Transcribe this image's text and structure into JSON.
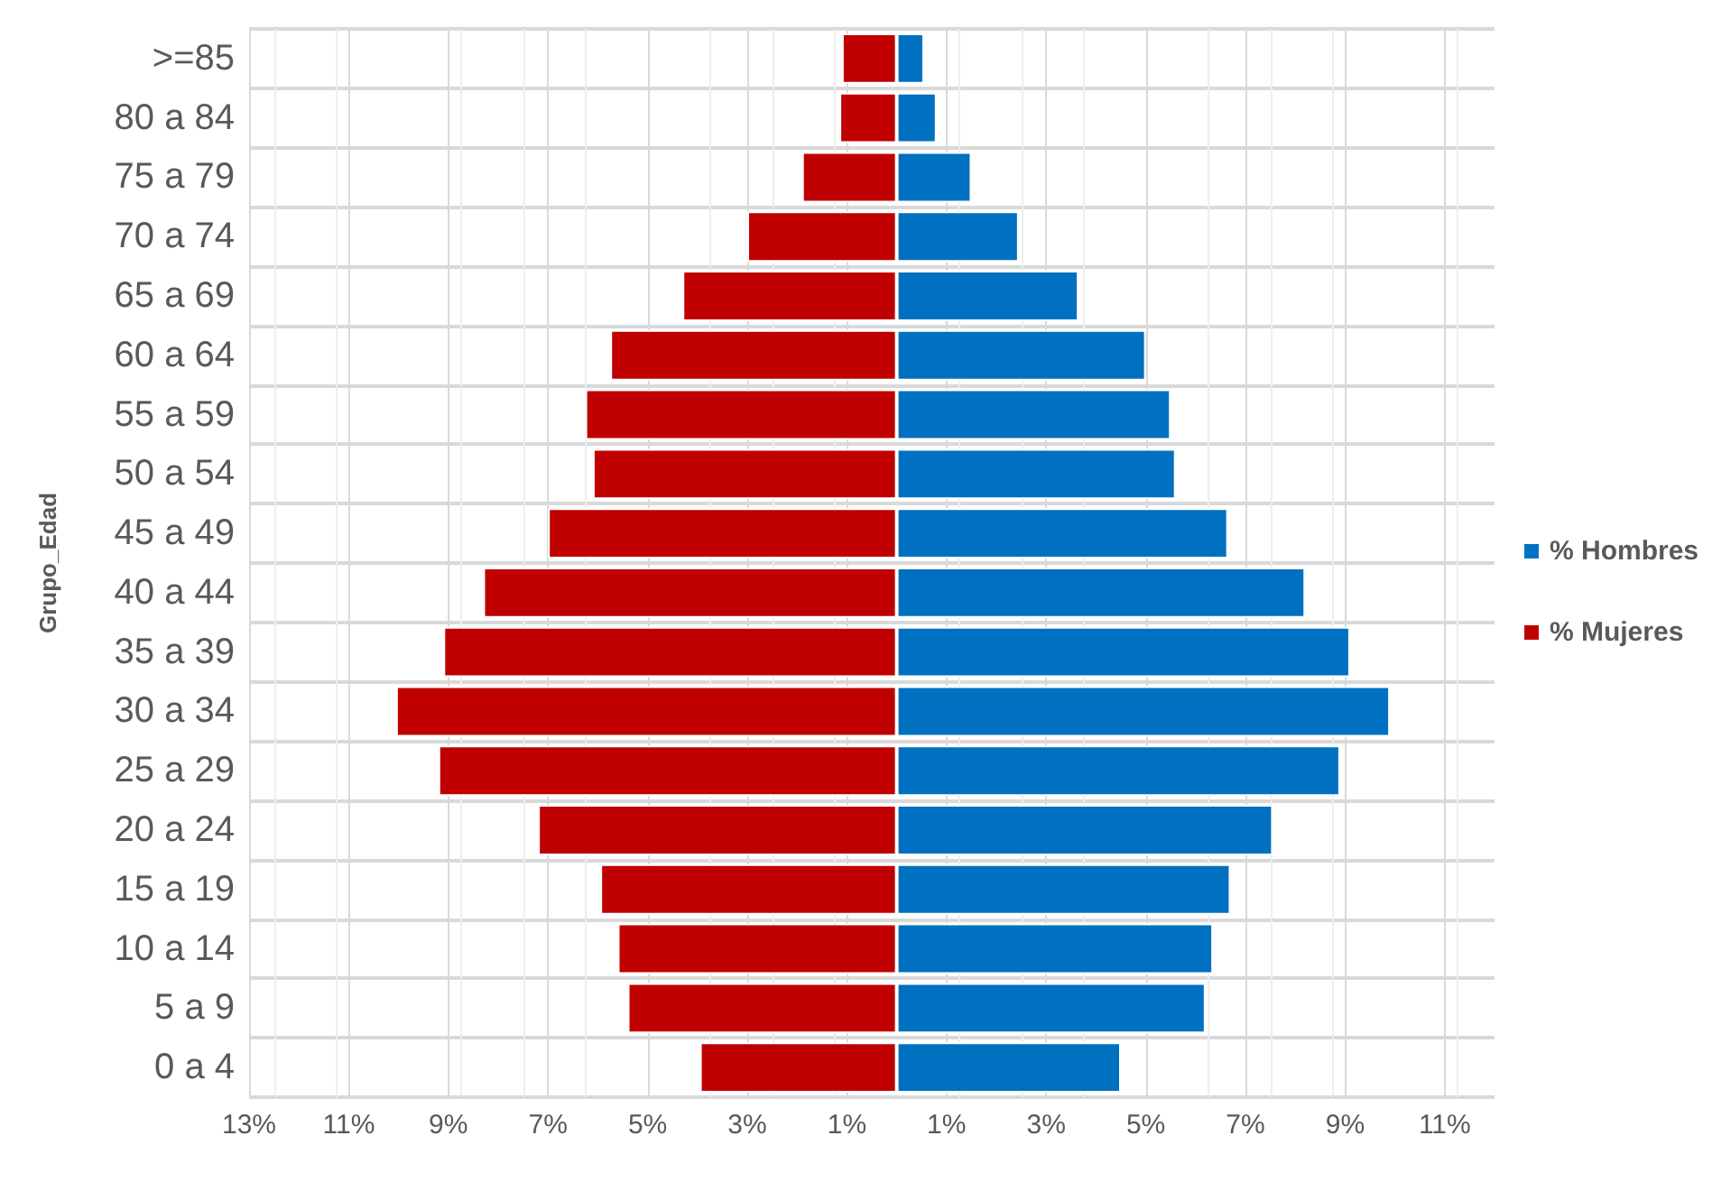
{
  "chart_data": {
    "type": "bar",
    "orientation": "horizontal",
    "stacked": true,
    "ylabel": "Grupo_Edad",
    "categories": [
      ">=85",
      "80 a 84",
      "75 a 79",
      "70 a 74",
      "65 a 69",
      "60 a 64",
      "55 a 59",
      "50 a 54",
      "45 a 49",
      "40 a 44",
      "35 a 39",
      "30 a 34",
      "25 a 29",
      "20 a 24",
      "15 a 19",
      "10 a 14",
      "5 a 9",
      "0 a 4"
    ],
    "series": [
      {
        "name": "% Hombres",
        "color": "#0070c0",
        "values": [
          0.55,
          0.8,
          1.5,
          2.45,
          3.65,
          5.0,
          5.5,
          5.6,
          6.65,
          8.2,
          9.1,
          9.9,
          8.9,
          7.55,
          6.7,
          6.35,
          6.2,
          4.5
        ]
      },
      {
        "name": "% Mujeres",
        "color": "#c00000",
        "values": [
          -1.1,
          -1.15,
          -1.9,
          -3.0,
          -4.3,
          -5.75,
          -6.25,
          -6.1,
          -7.0,
          -8.3,
          -9.1,
          -10.05,
          -9.2,
          -7.2,
          -5.95,
          -5.6,
          -5.4,
          -3.95
        ]
      }
    ],
    "xlim": [
      -13,
      12
    ],
    "xticks": [
      {
        "value": -13,
        "label": "13%"
      },
      {
        "value": -11,
        "label": "11%"
      },
      {
        "value": -9,
        "label": "9%"
      },
      {
        "value": -7,
        "label": "7%"
      },
      {
        "value": -5,
        "label": "5%"
      },
      {
        "value": -3,
        "label": "3%"
      },
      {
        "value": -1,
        "label": "1%"
      },
      {
        "value": 1,
        "label": "1%"
      },
      {
        "value": 3,
        "label": "3%"
      },
      {
        "value": 5,
        "label": "5%"
      },
      {
        "value": 7,
        "label": "7%"
      },
      {
        "value": 9,
        "label": "9%"
      },
      {
        "value": 11,
        "label": "11%"
      }
    ],
    "grid": true,
    "legend": "right"
  }
}
